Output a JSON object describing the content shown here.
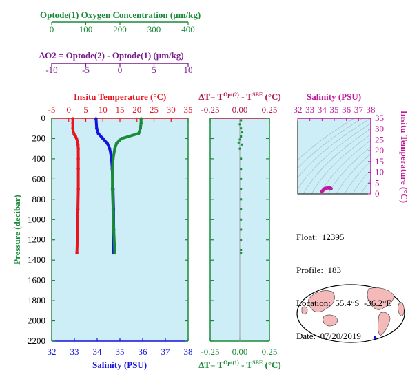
{
  "colors": {
    "oxygen": "#1a8a3a",
    "delta_o2": "#7a1a8c",
    "temperature": "#e8141e",
    "salinity": "#1414dc",
    "pressure": "#1a8a3a",
    "dt_upper": "#b0184a",
    "dt_lower": "#1a8a3a",
    "ts_axis": "#c0189c",
    "plot_bg": "#cdeef7",
    "land": "#f4b9b9"
  },
  "chart_data": [
    {
      "type": "line",
      "name": "profile",
      "title": "",
      "ylabel": "Pressure (decibar)",
      "ylim": [
        0,
        2200
      ],
      "yticks": [
        0,
        200,
        400,
        600,
        800,
        1000,
        1200,
        1400,
        1600,
        1800,
        2000,
        2200
      ],
      "axes": {
        "oxygen": {
          "label": "Optode(1) Oxygen Concentration (µm/kg)",
          "range": [
            0,
            400
          ],
          "ticks": [
            0,
            100,
            200,
            300,
            400
          ]
        },
        "delta_o2": {
          "label": "ΔO2 = Optode(2) - Optode(1)   (µm/kg)",
          "range": [
            -10,
            10
          ],
          "ticks": [
            -10,
            -5,
            0,
            5,
            10
          ]
        },
        "temperature": {
          "label": "Insitu Temperature (°C)",
          "range": [
            -5,
            35
          ],
          "ticks": [
            -5,
            0,
            5,
            10,
            15,
            20,
            25,
            30,
            35
          ]
        },
        "salinity": {
          "label": "Salinity (PSU)",
          "range": [
            32,
            38
          ],
          "ticks": [
            32,
            33,
            34,
            35,
            36,
            37,
            38
          ]
        }
      },
      "series": [
        {
          "name": "Temperature",
          "axis": "temperature",
          "pressure": [
            5,
            50,
            100,
            130,
            160,
            180,
            200,
            230,
            260,
            300,
            400,
            500,
            700,
            900,
            1100,
            1330
          ],
          "values": [
            1.2,
            1.2,
            1.2,
            1.3,
            1.6,
            2.0,
            2.3,
            2.6,
            2.7,
            2.8,
            2.8,
            2.8,
            2.8,
            2.7,
            2.6,
            2.4
          ]
        },
        {
          "name": "Salinity",
          "axis": "salinity",
          "pressure": [
            5,
            100,
            150,
            200,
            250,
            300,
            350,
            400,
            500,
            700,
            900,
            1100,
            1330
          ],
          "values": [
            33.95,
            33.98,
            34.05,
            34.25,
            34.45,
            34.55,
            34.6,
            34.63,
            34.66,
            34.7,
            34.72,
            34.73,
            34.72
          ]
        },
        {
          "name": "Oxygen",
          "axis": "oxygen",
          "pressure": [
            5,
            50,
            100,
            150,
            180,
            200,
            220,
            250,
            300,
            400,
            500,
            700,
            900,
            1100,
            1330
          ],
          "values": [
            262,
            262,
            260,
            255,
            225,
            205,
            198,
            190,
            185,
            180,
            178,
            178,
            180,
            182,
            185
          ]
        }
      ]
    },
    {
      "type": "scatter",
      "name": "delta_t",
      "upper_label": "ΔT= T^Opt(2) - T^SBE (°C)",
      "lower_label": "ΔT= T^Opt(1) - T^SBE (°C)",
      "xlim": [
        -0.25,
        0.25
      ],
      "xticks": [
        -0.25,
        0.0,
        0.25
      ],
      "ylim": [
        0,
        2200
      ],
      "points": [
        [
          0.01,
          20
        ],
        [
          0.0,
          60
        ],
        [
          0.01,
          100
        ],
        [
          0.02,
          140
        ],
        [
          0.01,
          180
        ],
        [
          0.0,
          210
        ],
        [
          -0.01,
          240
        ],
        [
          0.02,
          260
        ],
        [
          0.0,
          300
        ],
        [
          0.01,
          400
        ],
        [
          0.01,
          500
        ],
        [
          0.01,
          600
        ],
        [
          0.01,
          700
        ],
        [
          0.01,
          800
        ],
        [
          0.01,
          900
        ],
        [
          0.01,
          1000
        ],
        [
          0.01,
          1100
        ],
        [
          0.01,
          1200
        ],
        [
          0.01,
          1300
        ],
        [
          0.01,
          1330
        ]
      ]
    },
    {
      "type": "scatter",
      "name": "ts_diagram",
      "xlabel": "Salinity (PSU)",
      "ylabel": "Insitu Temperature (°C)",
      "xlim": [
        32,
        38
      ],
      "ylim": [
        0,
        35
      ],
      "xticks": [
        32,
        33,
        34,
        35,
        36,
        37,
        38
      ],
      "yticks": [
        0,
        5,
        10,
        15,
        20,
        25,
        30,
        35
      ],
      "points": [
        [
          34.0,
          1.2
        ],
        [
          34.1,
          1.8
        ],
        [
          34.2,
          2.3
        ],
        [
          34.3,
          2.6
        ],
        [
          34.45,
          2.8
        ],
        [
          34.55,
          2.8
        ],
        [
          34.65,
          2.7
        ],
        [
          34.72,
          2.5
        ],
        [
          34.73,
          2.4
        ]
      ]
    }
  ],
  "info": {
    "float": "Float:  12395",
    "profile": "Profile:  183",
    "location": "Location:  55.4°S  -36.2°E",
    "date": "Date:  07/20/2019"
  },
  "map": {
    "marker_lon": -36.2,
    "marker_lat": -55.4
  }
}
